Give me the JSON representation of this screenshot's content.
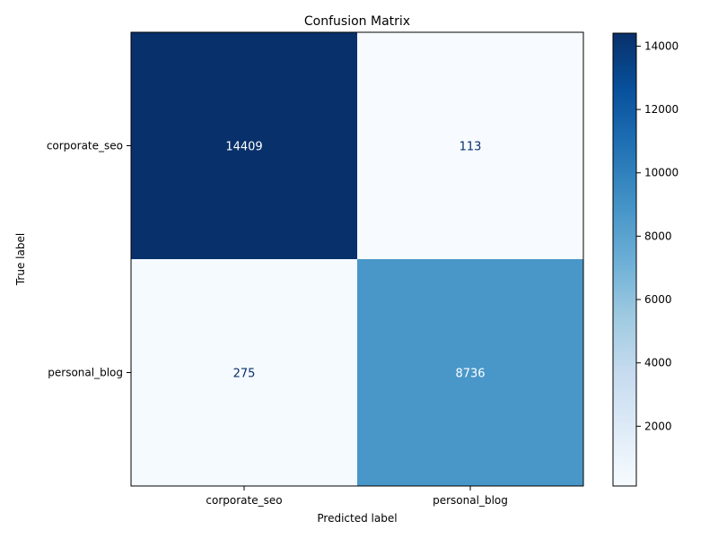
{
  "chart_data": {
    "type": "heatmap",
    "title": "Confusion Matrix",
    "xlabel": "Predicted label",
    "ylabel": "True label",
    "x_categories": [
      "corporate_seo",
      "personal_blog"
    ],
    "y_categories": [
      "corporate_seo",
      "personal_blog"
    ],
    "values": [
      [
        14409,
        113
      ],
      [
        275,
        8736
      ]
    ],
    "colormap": "Blues",
    "colorbar": {
      "ticks": [
        2000,
        4000,
        6000,
        8000,
        10000,
        12000,
        14000
      ],
      "range": [
        113,
        14409
      ]
    },
    "colors": {
      "low": "#f7fbff",
      "high": "#08306b",
      "text_dark": "#08306b",
      "text_light": "#ffffff"
    }
  }
}
